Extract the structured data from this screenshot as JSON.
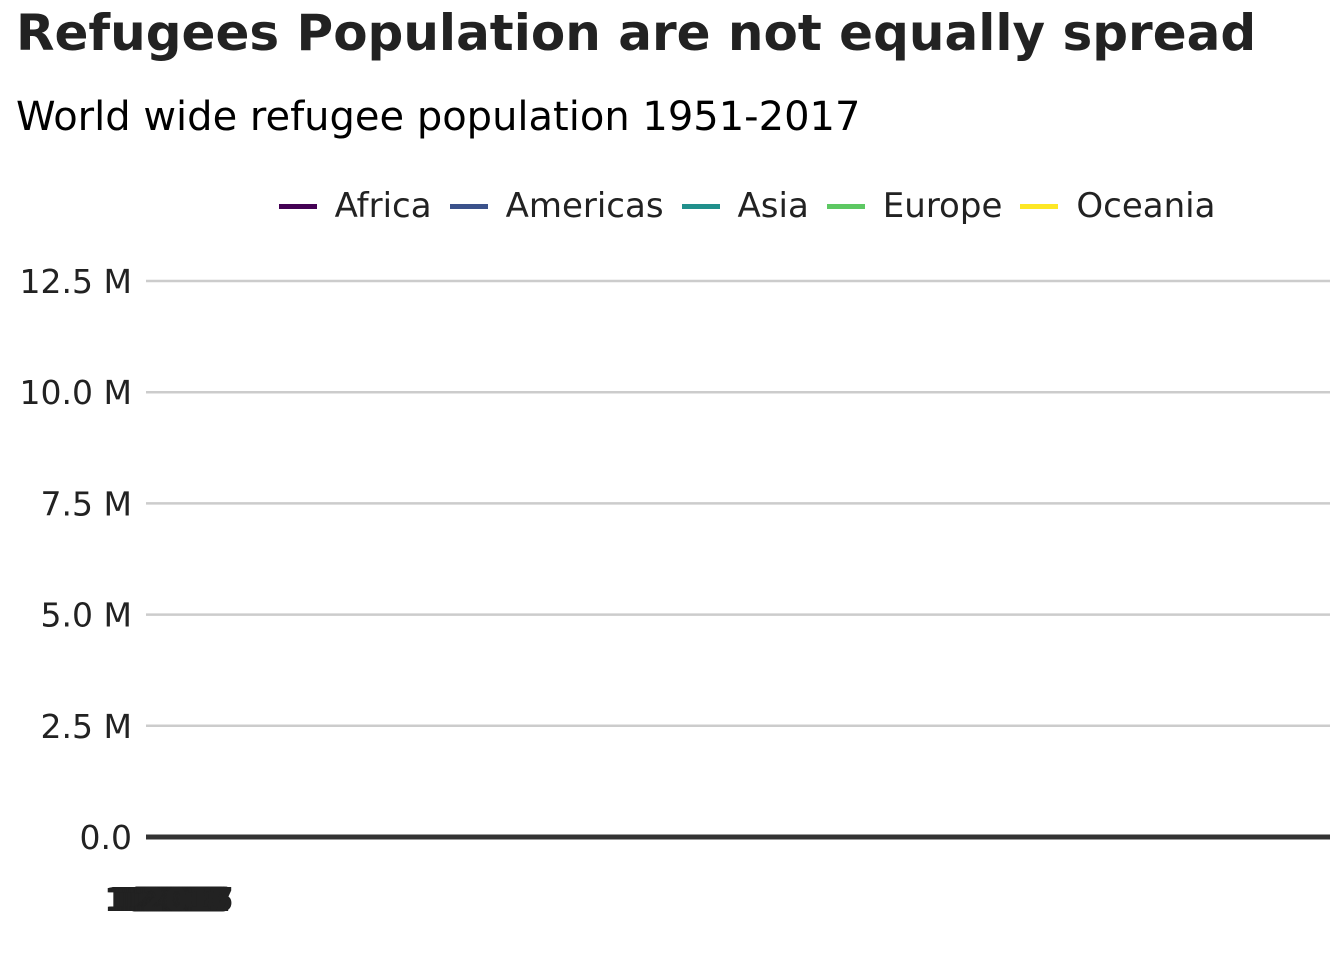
{
  "chart_data": {
    "type": "line",
    "title": "Refugees Population are not equally spread",
    "subtitle": "World wide refugee population 1951-2017",
    "xlabel": "",
    "ylabel": "",
    "ylim": [
      0,
      12500000
    ],
    "yticks": [
      0,
      2500000,
      5000000,
      7500000,
      10000000,
      12500000
    ],
    "ytick_labels": [
      "0.0",
      "2.5 M",
      "5.0 M",
      "7.5 M",
      "10.0 M",
      "12.5 M"
    ],
    "xlim": [
      1951,
      2017
    ],
    "grid": true,
    "legend_position": "top",
    "series": [
      {
        "name": "Africa",
        "color": "#440154",
        "values": []
      },
      {
        "name": "Americas",
        "color": "#3b528b",
        "values": []
      },
      {
        "name": "Asia",
        "color": "#21908c",
        "values": []
      },
      {
        "name": "Europe",
        "color": "#5dc863",
        "values": []
      },
      {
        "name": "Oceania",
        "color": "#fde725",
        "values": []
      }
    ],
    "colors": {
      "gridline": "#cccccc",
      "baseline": "#333333",
      "text": "#222222"
    }
  }
}
